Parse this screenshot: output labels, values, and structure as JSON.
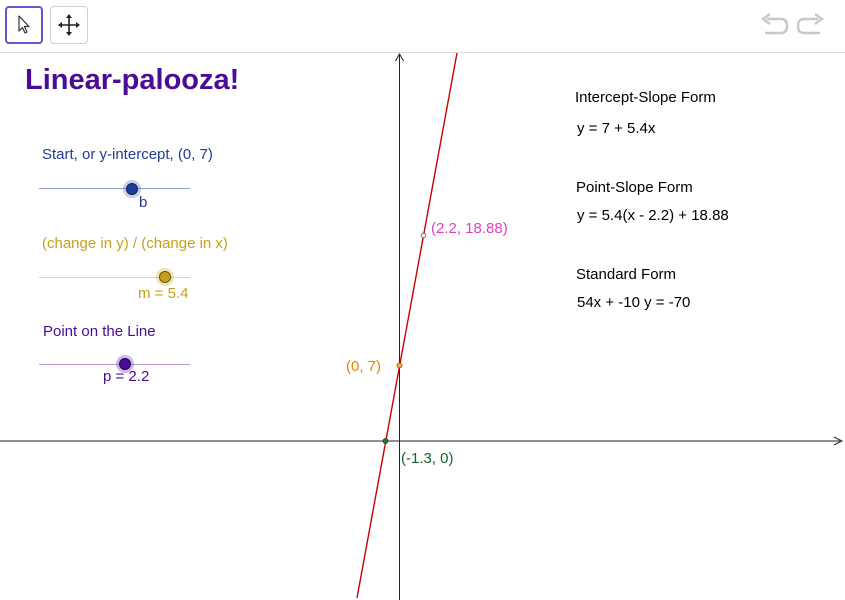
{
  "toolbar": {
    "select_tool": "pointer-arrow-icon",
    "move_tool": "move-arrows-icon",
    "undo": "undo-icon",
    "redo": "redo-icon"
  },
  "title": "Linear-palooza!",
  "sliders": [
    {
      "caption": "Start, or y-intercept, (0, 7)",
      "label": "b",
      "color": "#1f3c98",
      "value": 7
    },
    {
      "caption": "(change in y) / (change in x)",
      "label": "m = 5.4",
      "color": "#c8a017",
      "value": 5.4
    },
    {
      "caption": "Point on the Line",
      "label": "p = 2.2",
      "color": "#4b0b94",
      "value": 2.2
    }
  ],
  "forms": {
    "intercept_slope": {
      "title": "Intercept-Slope Form",
      "equation": "y = 7 + 5.4x"
    },
    "point_slope": {
      "title": "Point-Slope Form",
      "equation": "y = 5.4(x - 2.2) + 18.88"
    },
    "standard": {
      "title": "Standard Form",
      "equation": "54x + -10 y = -70"
    }
  },
  "points": {
    "intercept": {
      "label": "(0, 7)",
      "color": "#e08a0a"
    },
    "point_on_line": {
      "label": "(2.2, 18.88)",
      "color": "#e040c0"
    },
    "x_intercept": {
      "label": "(-1.3, 0)",
      "color": "#1a6030"
    }
  },
  "line_color": "#cc0000"
}
